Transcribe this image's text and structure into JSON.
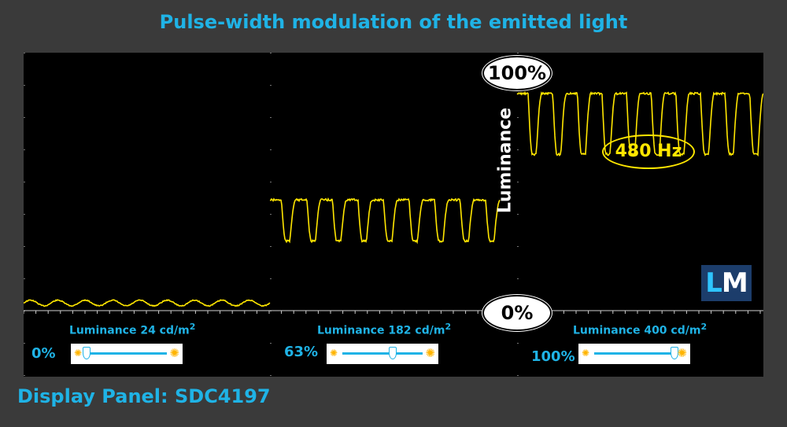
{
  "title": "Pulse-width modulation of the emitted light",
  "panel_label": "Display Panel: SDC4197",
  "annotations": {
    "max_label": "100%",
    "min_label": "0%",
    "frequency": "480  Hz",
    "axis_label": "Luminance"
  },
  "logo": {
    "first": "L",
    "second": "M"
  },
  "segments": [
    {
      "luminance_text": "Luminance 24 cd/m",
      "unit_power": "2",
      "brightness_label": "0%",
      "brightness": 0
    },
    {
      "luminance_text": "Luminance 182 cd/m",
      "unit_power": "2",
      "brightness_label": "63%",
      "brightness": 63
    },
    {
      "luminance_text": "Luminance 400 cd/m",
      "unit_power": "2",
      "brightness_label": "100%",
      "brightness": 100
    }
  ],
  "colors": {
    "accent": "#1fb3e6",
    "trace": "#ffe600",
    "background": "#3a3a3a",
    "scope": "#000000"
  },
  "chart_data": {
    "type": "line",
    "title": "Pulse-width modulation of the emitted light",
    "ylabel": "Luminance",
    "ylim": [
      0,
      100
    ],
    "frequency_hz": 480,
    "grid": true,
    "series": [
      {
        "brightness": "0%",
        "luminance_cd_m2": 24,
        "cycles": 9,
        "high": 4.8,
        "low": 2.2
      },
      {
        "brightness": "63%",
        "luminance_cd_m2": 182,
        "cycles": 9,
        "high": 51,
        "low": 32
      },
      {
        "brightness": "100%",
        "luminance_cd_m2": 400,
        "cycles": 10,
        "high": 100,
        "low": 72
      }
    ]
  }
}
